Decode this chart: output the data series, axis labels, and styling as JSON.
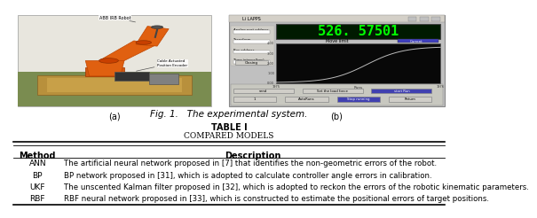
{
  "fig_caption": "Fig. 1.   The experimental system.",
  "subfig_a_label": "(a)",
  "subfig_b_label": "(b)",
  "table_title": "TABLE I",
  "table_subtitle": "COMPARED MODELS",
  "table_header": [
    "Method",
    "Description"
  ],
  "table_rows": [
    [
      "ANN",
      "The artificial neural network proposed in [7] that identifies the non-geometric errors of the robot."
    ],
    [
      "BP",
      "BP network proposed in [31], which is adopted to calculate controller angle errors in calibration."
    ],
    [
      "UKF",
      "The unscented Kalman filter proposed in [32], which is adopted to reckon the errors of the robotic kinematic parameters."
    ],
    [
      "RBF",
      "RBF neural network proposed in [33], which is constructed to estimate the positional errors of target positions."
    ]
  ],
  "bg_color": "#ffffff",
  "text_color": "#000000",
  "robot_color": "#E06010",
  "robot_dark": "#C04500",
  "gui_bg": "#c0c0c0",
  "gui_display_bg": "#001a00",
  "gui_display_text": "#00ff00",
  "gui_graph_bg": "#080808",
  "gui_graph_line": "#cccccc",
  "gui_titlebar": "#d4d0c8",
  "photo_bg_wall": "#e8e8e0",
  "photo_bg_floor": "#c8c8a8",
  "table_lw_thick": 1.2,
  "table_lw_thin": 0.6
}
